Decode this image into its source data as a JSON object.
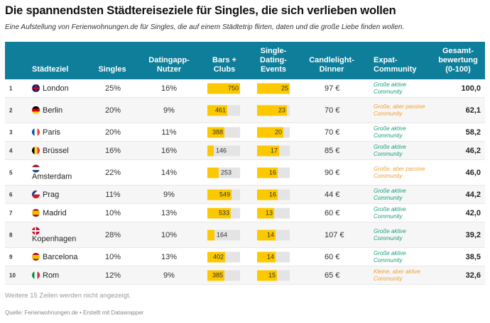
{
  "title": "Die spannendsten Städtereiseziele für Singles, die sich verlieben wollen",
  "subtitle": "Eine Aufstellung von Ferienwohnungen.de für Singles, die auf einem Städtetrip flirten, daten und die große Liebe finden wollen.",
  "colors": {
    "header_bg": "#0e7e9a",
    "bar_fill": "#fcc800",
    "bar_track": "#e4e4e4",
    "expat_green": "#18a07e",
    "expat_orange": "#f0a030"
  },
  "columns": {
    "city": "Städteziel",
    "singles": "Singles",
    "datingapp": "Datingapp-\nNutzer",
    "bars": "Bars +\nClubs",
    "events": "Single-\nDating-\nEvents",
    "dinner": "Candlelight-\nDinner",
    "expat": "Expat-\nCommunity",
    "score": "Gesamt-\nbewertung\n(0-100)"
  },
  "bars_max": 750,
  "events_max": 25,
  "rows": [
    {
      "rank": "1",
      "city": "London",
      "flag": "gb",
      "singles": "25%",
      "datingapp": "16%",
      "bars": 750,
      "events": 25,
      "dinner": "97 €",
      "expat": "Große aktive Community",
      "expat_tone": "green",
      "score": "100,0"
    },
    {
      "rank": "2",
      "city": "Berlin",
      "flag": "de",
      "singles": "20%",
      "datingapp": "9%",
      "bars": 461,
      "events": 23,
      "dinner": "70 €",
      "expat": "Große, aber passive Community",
      "expat_tone": "orange",
      "score": "62,1"
    },
    {
      "rank": "3",
      "city": "Paris",
      "flag": "fr",
      "singles": "20%",
      "datingapp": "11%",
      "bars": 388,
      "events": 20,
      "dinner": "70 €",
      "expat": "Große aktive Community",
      "expat_tone": "green",
      "score": "58,2"
    },
    {
      "rank": "4",
      "city": "Brüssel",
      "flag": "be",
      "singles": "16%",
      "datingapp": "16%",
      "bars": 146,
      "events": 17,
      "dinner": "85 €",
      "expat": "Große aktive Community",
      "expat_tone": "green",
      "score": "46,2"
    },
    {
      "rank": "5",
      "city": "Amsterdam",
      "flag": "nl",
      "singles": "22%",
      "datingapp": "14%",
      "bars": 253,
      "events": 16,
      "dinner": "90 €",
      "expat": "Große, aber passive Community",
      "expat_tone": "orange",
      "score": "46,0"
    },
    {
      "rank": "6",
      "city": "Prag",
      "flag": "cz",
      "singles": "11%",
      "datingapp": "9%",
      "bars": 549,
      "events": 16,
      "dinner": "44 €",
      "expat": "Große aktive Community",
      "expat_tone": "green",
      "score": "44,2"
    },
    {
      "rank": "7",
      "city": "Madrid",
      "flag": "es",
      "singles": "10%",
      "datingapp": "13%",
      "bars": 533,
      "events": 13,
      "dinner": "60 €",
      "expat": "Große aktive Community",
      "expat_tone": "green",
      "score": "42,0"
    },
    {
      "rank": "8",
      "city": "Kopenhagen",
      "flag": "dk",
      "singles": "28%",
      "datingapp": "10%",
      "bars": 164,
      "events": 14,
      "dinner": "107 €",
      "expat": "Große aktive Community",
      "expat_tone": "green",
      "score": "39,2"
    },
    {
      "rank": "9",
      "city": "Barcelona",
      "flag": "es",
      "singles": "10%",
      "datingapp": "13%",
      "bars": 402,
      "events": 14,
      "dinner": "60 €",
      "expat": "Große aktive Community",
      "expat_tone": "green",
      "score": "38,5"
    },
    {
      "rank": "10",
      "city": "Rom",
      "flag": "it",
      "singles": "12%",
      "datingapp": "9%",
      "bars": 385,
      "events": 15,
      "dinner": "65 €",
      "expat": "Kleine, aber aktive Community",
      "expat_tone": "orange",
      "score": "32,6"
    }
  ],
  "note": "Weitere 15 Zeilen werden nicht angezeigt.",
  "source": "Quelle: Ferienwohnungen.de • Erstellt mit Datawrapper"
}
